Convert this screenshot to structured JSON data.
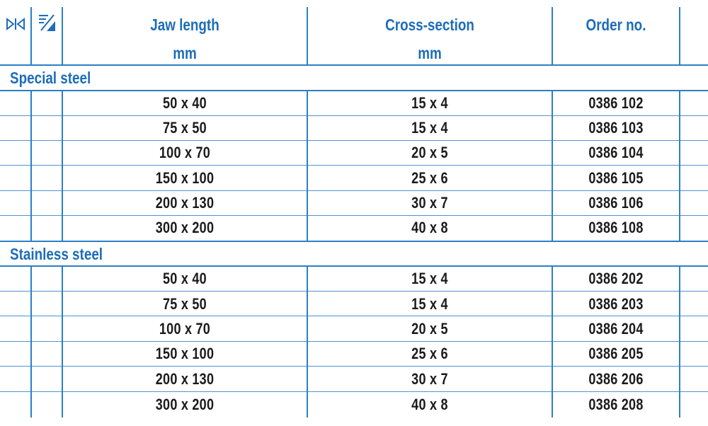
{
  "header": {
    "jaw_length": "Jaw length",
    "jaw_length_unit": "mm",
    "cross_section": "Cross-section",
    "cross_section_unit": "mm",
    "order_no": "Order no.",
    "icons": [
      "jaw-opening-icon",
      "material-hatch-icon"
    ]
  },
  "groups": [
    {
      "label": "Special steel",
      "rows": [
        {
          "jaw": "50 x 40",
          "cross": "15 x 4",
          "order": "0386 102"
        },
        {
          "jaw": "75 x 50",
          "cross": "15 x 4",
          "order": "0386 103"
        },
        {
          "jaw": "100 x 70",
          "cross": "20 x 5",
          "order": "0386 104"
        },
        {
          "jaw": "150 x 100",
          "cross": "25 x 6",
          "order": "0386 105"
        },
        {
          "jaw": "200 x 130",
          "cross": "30 x 7",
          "order": "0386 106"
        },
        {
          "jaw": "300 x 200",
          "cross": "40 x 8",
          "order": "0386 108"
        }
      ]
    },
    {
      "label": "Stainless steel",
      "rows": [
        {
          "jaw": "50 x 40",
          "cross": "15 x 4",
          "order": "0386 202"
        },
        {
          "jaw": "75 x 50",
          "cross": "15 x 4",
          "order": "0386 203"
        },
        {
          "jaw": "100 x 70",
          "cross": "20 x 5",
          "order": "0386 204"
        },
        {
          "jaw": "150 x 100",
          "cross": "25 x 6",
          "order": "0386 205"
        },
        {
          "jaw": "200 x 130",
          "cross": "30 x 7",
          "order": "0386 206"
        },
        {
          "jaw": "300 x 200",
          "cross": "40 x 8",
          "order": "0386 208"
        }
      ]
    }
  ],
  "colors": {
    "accent": "#1d6db8",
    "rule": "#2c7fc4",
    "text": "#1a1a1a"
  }
}
